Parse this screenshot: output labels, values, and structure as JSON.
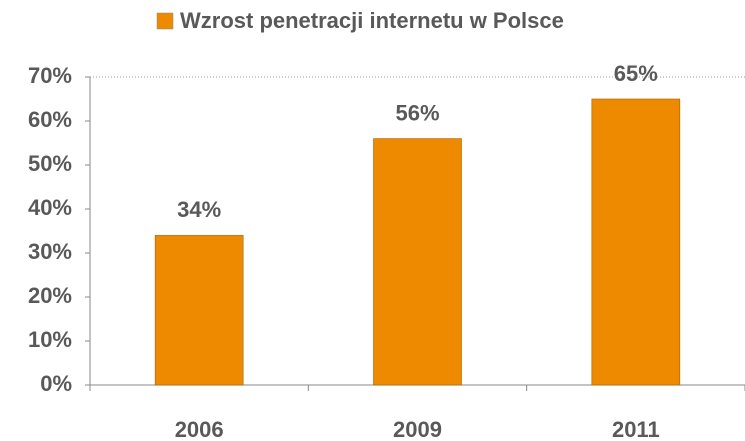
{
  "chart_data": {
    "type": "bar",
    "categories": [
      "2006",
      "2009",
      "2011"
    ],
    "series": [
      {
        "name": "Wzrost penetracji internetu w Polsce",
        "color": "#ee8a00",
        "values": [
          34,
          56,
          65
        ],
        "value_labels": [
          "34%",
          "56%",
          "65%"
        ]
      }
    ],
    "ylim": [
      0,
      70
    ],
    "yticks": [
      {
        "value": 0,
        "label": "0%"
      },
      {
        "value": 10,
        "label": "10%"
      },
      {
        "value": 20,
        "label": "20%"
      },
      {
        "value": 30,
        "label": "30%"
      },
      {
        "value": 40,
        "label": "40%"
      },
      {
        "value": 50,
        "label": "50%"
      },
      {
        "value": 60,
        "label": "60%"
      },
      {
        "value": 70,
        "label": "70%"
      }
    ],
    "grid": false,
    "legend": "top"
  }
}
